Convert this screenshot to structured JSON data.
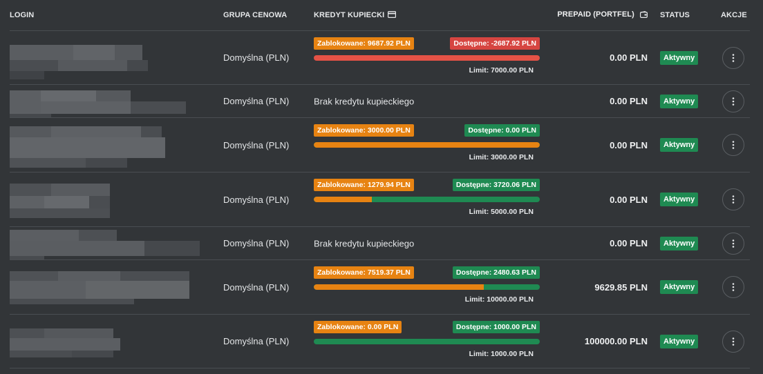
{
  "header": {
    "login": "LOGIN",
    "grupa": "GRUPA CENOWA",
    "kredyt": "KREDYT KUPIECKI",
    "prepaid": "PREPAID (PORTFEL)",
    "status": "STATUS",
    "akcje": "AKCJE"
  },
  "icons": {
    "kredyt": "credit-card-icon",
    "prepaid": "wallet-icon",
    "actions": "more-vertical-icon"
  },
  "colors": {
    "locked": "#e78312",
    "available": "#1f8a52",
    "negative": "#d64541",
    "status": "#1f8a52"
  },
  "rows": [
    {
      "grupa": "Domyślna (PLN)",
      "has_credit": true,
      "locked": "Zablokowane: 9687.92 PLN",
      "available": "Dostępne: -2687.92 PLN",
      "available_negative": true,
      "locked_ratio": 1.0,
      "limit": "Limit: 7000.00 PLN",
      "prepaid": "0.00 PLN",
      "status": "Aktywny"
    },
    {
      "grupa": "Domyślna (PLN)",
      "has_credit": false,
      "no_credit": "Brak kredytu kupieckiego",
      "prepaid": "0.00 PLN",
      "status": "Aktywny"
    },
    {
      "grupa": "Domyślna (PLN)",
      "has_credit": true,
      "locked": "Zablokowane: 3000.00 PLN",
      "available": "Dostępne: 0.00 PLN",
      "available_negative": false,
      "locked_ratio": 1.0,
      "limit": "Limit: 3000.00 PLN",
      "prepaid": "0.00 PLN",
      "status": "Aktywny"
    },
    {
      "grupa": "Domyślna (PLN)",
      "has_credit": true,
      "locked": "Zablokowane: 1279.94 PLN",
      "available": "Dostępne: 3720.06 PLN",
      "available_negative": false,
      "locked_ratio": 0.256,
      "limit": "Limit: 5000.00 PLN",
      "prepaid": "0.00 PLN",
      "status": "Aktywny"
    },
    {
      "grupa": "Domyślna (PLN)",
      "has_credit": false,
      "no_credit": "Brak kredytu kupieckiego",
      "prepaid": "0.00 PLN",
      "status": "Aktywny"
    },
    {
      "grupa": "Domyślna (PLN)",
      "has_credit": true,
      "locked": "Zablokowane: 7519.37 PLN",
      "available": "Dostępne: 2480.63 PLN",
      "available_negative": false,
      "locked_ratio": 0.752,
      "limit": "Limit: 10000.00 PLN",
      "prepaid": "9629.85 PLN",
      "status": "Aktywny"
    },
    {
      "grupa": "Domyślna (PLN)",
      "has_credit": true,
      "locked": "Zablokowane: 0.00 PLN",
      "available": "Dostępne: 1000.00 PLN",
      "available_negative": false,
      "locked_ratio": 0.0,
      "limit": "Limit: 1000.00 PLN",
      "prepaid": "100000.00 PLN",
      "status": "Aktywny"
    }
  ]
}
